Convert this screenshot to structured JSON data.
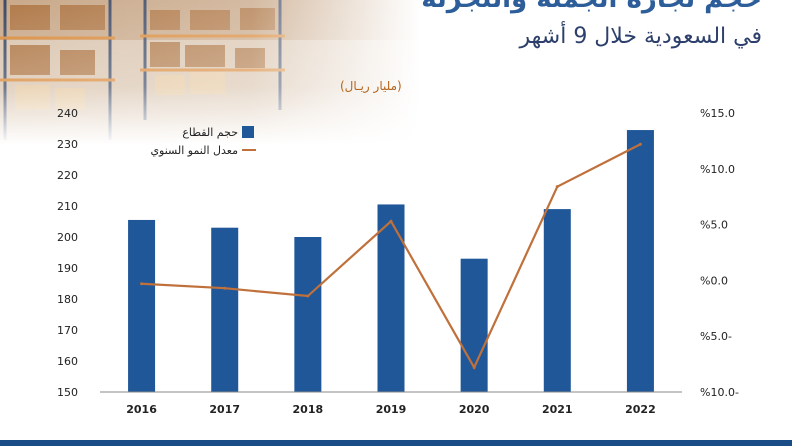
{
  "header": {
    "title_main": "حجم تجارة الجملة والتجزئة",
    "title_sub": "في السعودية خلال 9 أشهر",
    "unit": "(مليار ريـال)"
  },
  "colors": {
    "bar": "#1f5799",
    "line": "#c0703a",
    "title": "#2d5e9a",
    "axis_text": "#222222"
  },
  "chart_data": {
    "type": "bar",
    "categories": [
      "2016",
      "2017",
      "2018",
      "2019",
      "2020",
      "2021",
      "2022"
    ],
    "series": [
      {
        "name": "حجم القطاع",
        "type": "bar",
        "axis": "left",
        "values": [
          205.5,
          203,
          200,
          210.5,
          193,
          209,
          234.5
        ]
      },
      {
        "name": "معدل النمو السنوي",
        "type": "line",
        "axis": "right",
        "values": [
          -0.3,
          -0.7,
          -1.4,
          5.3,
          -7.8,
          8.4,
          12.2
        ]
      }
    ],
    "yleft": {
      "lim": [
        150,
        240
      ],
      "ticks": [
        "150",
        "160",
        "170",
        "180",
        "190",
        "200",
        "210",
        "220",
        "230",
        "240"
      ]
    },
    "yright": {
      "lim": [
        -10,
        15
      ],
      "ticks": [
        "%10.0-",
        "%5.0-",
        "%0.0",
        "%5.0",
        "%10.0",
        "%15.0"
      ]
    },
    "legend_position": "top-left",
    "grid": false
  }
}
